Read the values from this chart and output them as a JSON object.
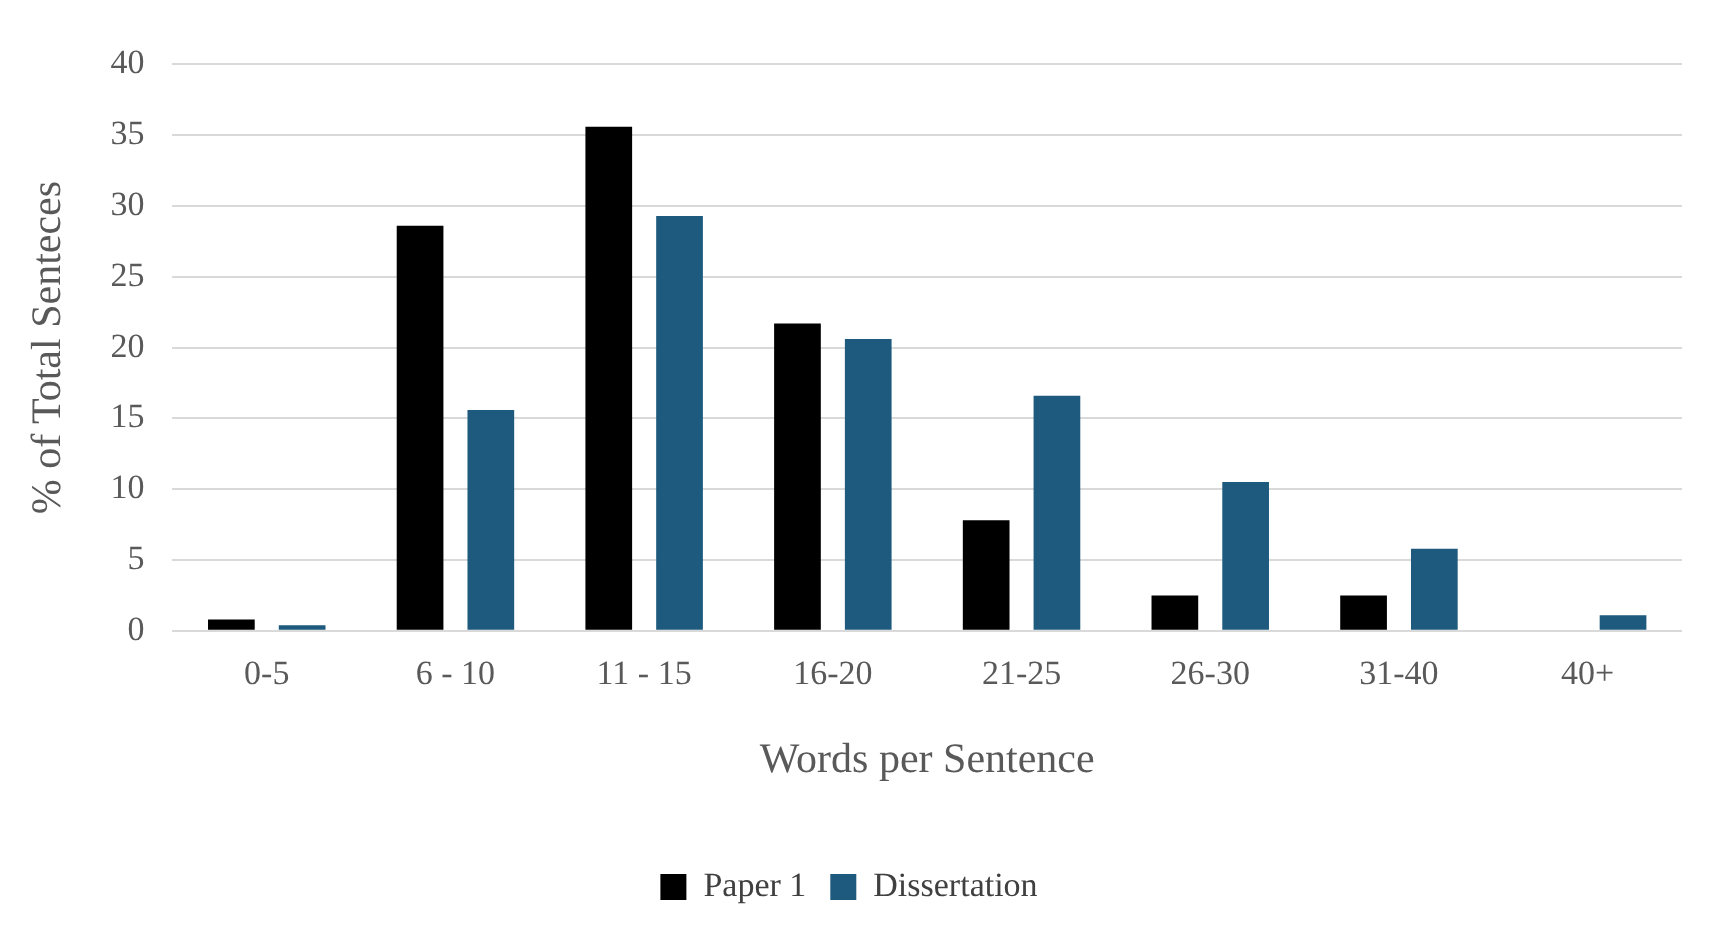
{
  "chart_data": {
    "type": "bar",
    "xlabel": "Words per Sentence",
    "ylabel": "% of Total Senteces",
    "categories": [
      "0-5",
      "6 - 10",
      "11 - 15",
      "16-20",
      "21-25",
      "26-30",
      "31-40",
      "40+"
    ],
    "series": [
      {
        "name": "Paper 1",
        "color": "#000000",
        "values": [
          0.8,
          28.6,
          35.6,
          21.7,
          7.8,
          2.5,
          2.5,
          0
        ]
      },
      {
        "name": "Dissertation",
        "color": "#1d5a7e",
        "values": [
          0.4,
          15.6,
          29.3,
          20.6,
          16.6,
          10.5,
          5.8,
          1.1
        ]
      }
    ],
    "ylim": [
      0,
      40
    ],
    "yticks": [
      0,
      5,
      10,
      15,
      20,
      25,
      30,
      35,
      40
    ],
    "grid": "y",
    "legend": "bottom"
  }
}
